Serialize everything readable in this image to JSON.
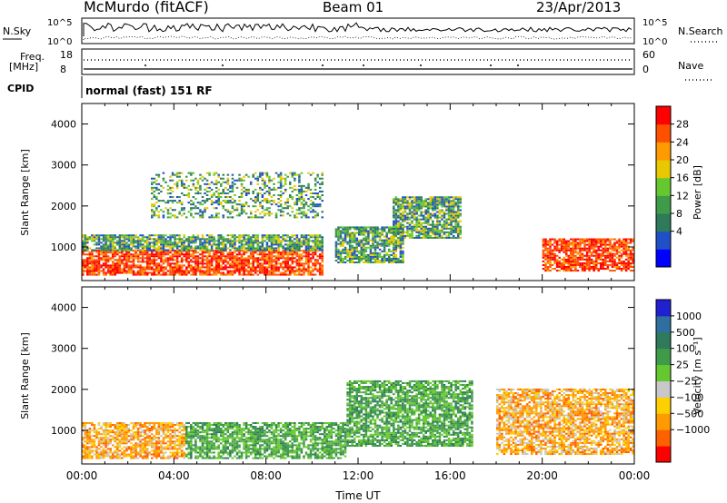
{
  "header": {
    "station": "McMurdo (fitACF)",
    "beam": "Beam 01",
    "date": "23/Apr/2013"
  },
  "noise_panel": {
    "left_label": "N.Sky",
    "right_label": "N.Search",
    "left_ticks": [
      "10^5",
      "10^0"
    ],
    "right_ticks": [
      "10^5",
      "10^0"
    ]
  },
  "freq_panel": {
    "left_label_1": "Freq.",
    "left_label_2": "[MHz]",
    "left_ticks": [
      "18",
      "8"
    ],
    "right_label": "Nave",
    "right_ticks": [
      "60",
      "0"
    ]
  },
  "cpid": {
    "label": "CPID",
    "value": "normal (fast) 151 RF"
  },
  "colors": {
    "power_scale": [
      "#0000ff",
      "#2050c8",
      "#2f7a5a",
      "#3f9a4a",
      "#66c830",
      "#e8c800",
      "#ff9a00",
      "#ff5000",
      "#ff0000"
    ],
    "velocity_scale": [
      "#2020d0",
      "#2f6fa0",
      "#2f7a5a",
      "#3f9a4a",
      "#66c830",
      "#c8c8c8",
      "#ffd000",
      "#ff9a00",
      "#ff6000",
      "#ff0000"
    ]
  },
  "chart_data": [
    {
      "type": "heatmap",
      "name": "power",
      "xlabel": "",
      "ylabel": "Slant Range [km]",
      "xlim": [
        "00:00",
        "00:00"
      ],
      "ylim": [
        180,
        4500
      ],
      "yticks": [
        "1000",
        "2000",
        "3000",
        "4000"
      ],
      "colorbar": {
        "label": "Power [dB]",
        "ticks": [
          "4",
          "8",
          "12",
          "16",
          "20",
          "24",
          "28"
        ],
        "range": [
          0,
          32
        ]
      },
      "regions": [
        {
          "t": [
            0.0,
            10.5
          ],
          "r": [
            300,
            900
          ],
          "level": "strong"
        },
        {
          "t": [
            0.0,
            10.5
          ],
          "r": [
            900,
            1300
          ],
          "level": "medium"
        },
        {
          "t": [
            3.0,
            10.5
          ],
          "r": [
            1700,
            2800
          ],
          "level": "weak"
        },
        {
          "t": [
            11.0,
            14.0
          ],
          "r": [
            600,
            1500
          ],
          "level": "medium"
        },
        {
          "t": [
            13.5,
            16.5
          ],
          "r": [
            1200,
            2200
          ],
          "level": "medium"
        },
        {
          "t": [
            20.0,
            24.0
          ],
          "r": [
            400,
            1200
          ],
          "level": "strong"
        }
      ]
    },
    {
      "type": "heatmap",
      "name": "velocity",
      "xlabel": "Time UT",
      "ylabel": "Slant Range [km]",
      "xticks": [
        "00:00",
        "04:00",
        "08:00",
        "12:00",
        "16:00",
        "20:00",
        "00:00"
      ],
      "ylim": [
        180,
        4500
      ],
      "yticks": [
        "1000",
        "2000",
        "3000",
        "4000"
      ],
      "colorbar": {
        "label": "Velocity [m s⁻¹]",
        "ticks": [
          "1000",
          "500",
          "100",
          "25",
          "−25",
          "−100",
          "−500",
          "−1000"
        ],
        "range": [
          -1500,
          1500
        ]
      },
      "regions": [
        {
          "t": [
            0.0,
            4.5
          ],
          "r": [
            300,
            1200
          ],
          "level": "-100 to -500"
        },
        {
          "t": [
            4.5,
            11.5
          ],
          "r": [
            300,
            1200
          ],
          "level": "100 to 500"
        },
        {
          "t": [
            11.5,
            17.0
          ],
          "r": [
            600,
            2200
          ],
          "level": "100 to 500"
        },
        {
          "t": [
            18.0,
            24.0
          ],
          "r": [
            400,
            2000
          ],
          "level": "-100 to -500"
        }
      ]
    }
  ]
}
